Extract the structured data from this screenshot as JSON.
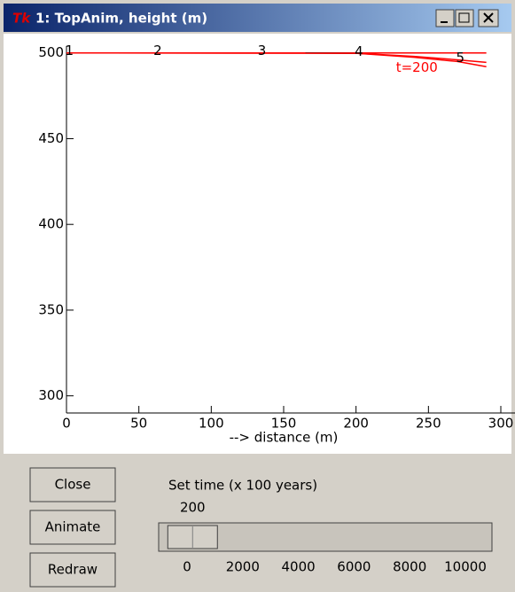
{
  "window": {
    "title": "1: TopAnim, height (m)"
  },
  "chart_data": {
    "type": "line",
    "xlabel": "--> distance (m)",
    "xlim": [
      0,
      300
    ],
    "xticks": [
      0,
      50,
      100,
      150,
      200,
      250,
      300
    ],
    "ylim": [
      290,
      504
    ],
    "yticks": [
      300,
      350,
      400,
      450,
      500
    ],
    "series": [
      {
        "color": "#ff0000",
        "x": [
          0,
          290
        ],
        "values": [
          500,
          500
        ]
      },
      {
        "color": "#000000",
        "x": [
          165,
          200
        ],
        "values": [
          500,
          499.8
        ]
      },
      {
        "color": "#ff0000",
        "x": [
          0,
          200,
          240,
          270,
          290
        ],
        "values": [
          500,
          499.8,
          497.5,
          495,
          492
        ]
      },
      {
        "color": "#ff0000",
        "x": [
          200,
          240,
          270,
          290
        ],
        "values": [
          499.8,
          498,
          496,
          494.5
        ]
      }
    ],
    "markers": [
      {
        "text": "1",
        "x": 2,
        "y": 500
      },
      {
        "text": "2",
        "x": 63,
        "y": 500
      },
      {
        "text": "3",
        "x": 135,
        "y": 500
      },
      {
        "text": "4",
        "x": 202,
        "y": 499.5
      },
      {
        "text": "5",
        "x": 272,
        "y": 496
      }
    ],
    "annotations": [
      {
        "text": "t=200",
        "x": 242,
        "y": 496.5
      }
    ]
  },
  "controls": {
    "buttons": [
      "Close",
      "Animate",
      "Redraw"
    ],
    "slider": {
      "label": "Set time (x 100 years)",
      "value": 200,
      "min": 0,
      "max": 10000,
      "ticks": [
        0,
        2000,
        4000,
        6000,
        8000,
        10000
      ]
    }
  }
}
